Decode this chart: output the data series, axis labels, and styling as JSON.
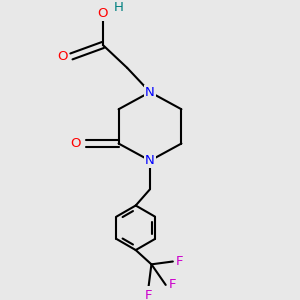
{
  "background_color": "#e8e8e8",
  "bond_color": "#000000",
  "nitrogen_color": "#0000ff",
  "oxygen_color": "#ff0000",
  "fluorine_color": "#cc00cc",
  "hydrogen_color": "#008080",
  "figsize": [
    3.0,
    3.0
  ],
  "dpi": 100,
  "xlim": [
    0,
    10
  ],
  "ylim": [
    0,
    10
  ]
}
